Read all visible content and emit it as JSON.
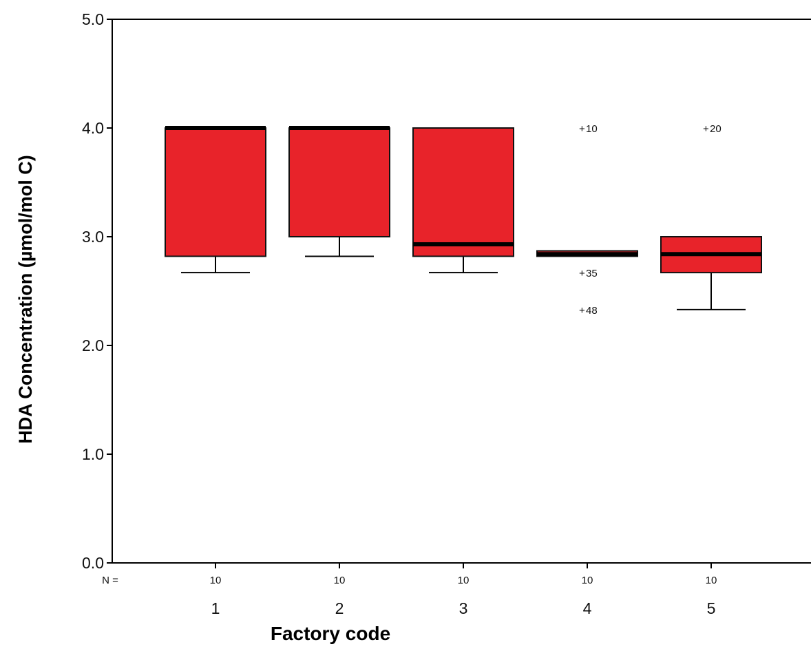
{
  "chart_data": {
    "type": "box",
    "xlabel": "Factory code",
    "ylabel": "HDA Concentration (µmol/mol C)",
    "ylim": [
      0,
      5
    ],
    "yticks": [
      "0.0",
      "1.0",
      "2.0",
      "3.0",
      "4.0",
      "5.0"
    ],
    "n_label": "N =",
    "box_color": "#e8232a",
    "categories": [
      "1",
      "2",
      "3",
      "4",
      "5"
    ],
    "boxes": [
      {
        "category": "1",
        "n": "10",
        "whisker_low": 2.67,
        "q1": 2.82,
        "median": 4.0,
        "q3": 4.0,
        "whisker_high": 4.0,
        "outliers": []
      },
      {
        "category": "2",
        "n": "10",
        "whisker_low": 2.82,
        "q1": 3.0,
        "median": 4.0,
        "q3": 4.0,
        "whisker_high": 4.0,
        "outliers": []
      },
      {
        "category": "3",
        "n": "10",
        "whisker_low": 2.67,
        "q1": 2.82,
        "median": 2.93,
        "q3": 4.0,
        "whisker_high": 4.0,
        "outliers": []
      },
      {
        "category": "4",
        "n": "10",
        "whisker_low": 2.82,
        "q1": 2.82,
        "median": 2.84,
        "q3": 2.87,
        "whisker_high": 2.87,
        "outliers": [
          {
            "value": 4.0,
            "label": "10"
          },
          {
            "value": 2.67,
            "label": "35"
          },
          {
            "value": 2.33,
            "label": "48"
          }
        ]
      },
      {
        "category": "5",
        "n": "10",
        "whisker_low": 2.33,
        "q1": 2.67,
        "median": 2.84,
        "q3": 3.0,
        "whisker_high": 3.0,
        "outliers": [
          {
            "value": 4.0,
            "label": "20"
          }
        ]
      }
    ]
  }
}
